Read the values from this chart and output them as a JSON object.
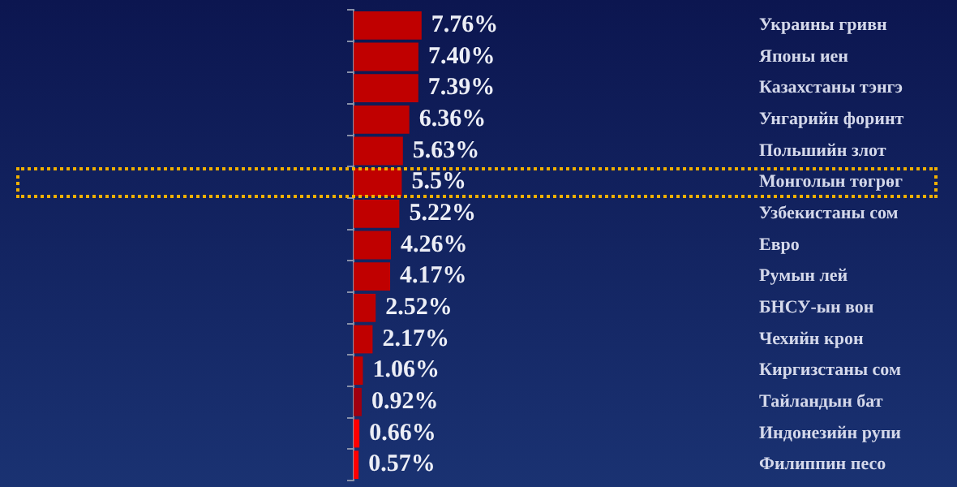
{
  "chart_data": {
    "type": "bar",
    "orientation": "horizontal",
    "categories": [
      "Украины гривн",
      "Японы иен",
      "Казахстаны тэнгэ",
      "Унгарийн форинт",
      "Польшийн злот",
      "Монголын төгрөг",
      "Узбекистаны сом",
      "Евро",
      "Румын лей",
      "БНСУ-ын вон",
      "Чехийн крон",
      "Киргизстаны сом",
      "Тайландын бат",
      "Индонезийн рупи",
      "Филиппин песо"
    ],
    "values": [
      7.76,
      7.4,
      7.39,
      6.36,
      5.63,
      5.5,
      5.22,
      4.26,
      4.17,
      2.52,
      2.17,
      1.06,
      0.92,
      0.66,
      0.57
    ],
    "value_labels": [
      "7.76%",
      "7.40%",
      "7.39%",
      "6.36%",
      "5.63%",
      "5.5%",
      "5.22%",
      "4.26%",
      "4.17%",
      "2.52%",
      "2.17%",
      "1.06%",
      "0.92%",
      "0.66%",
      "0.57%"
    ],
    "colors": [
      "#c00000",
      "#c00000",
      "#c00000",
      "#c00000",
      "#c00000",
      "#c00000",
      "#c00000",
      "#c00000",
      "#c00000",
      "#c00000",
      "#c00000",
      "#c00000",
      "#a00010",
      "#ff0000",
      "#ff0000"
    ],
    "tick_labels": "y"
  }
}
